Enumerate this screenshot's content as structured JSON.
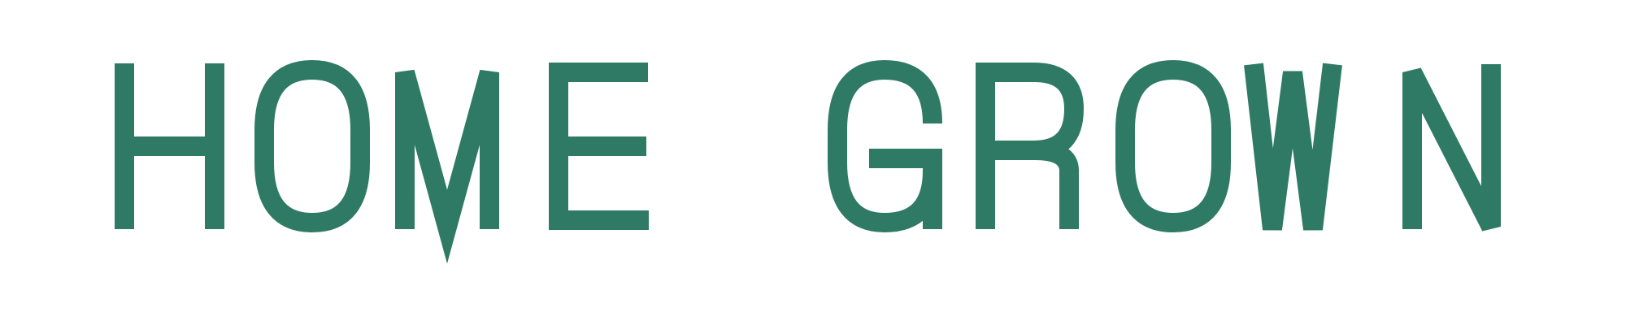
{
  "logo": {
    "words": [
      "HOME",
      "GROWN"
    ],
    "text_color": "#2f7a64",
    "background_color": "#ffffff"
  }
}
